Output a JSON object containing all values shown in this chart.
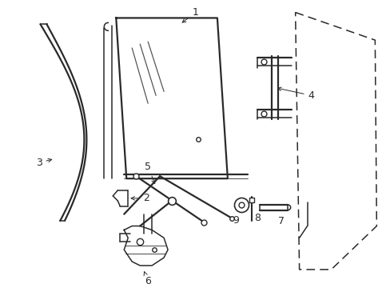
{
  "bg_color": "#ffffff",
  "line_color": "#2a2a2a",
  "figsize": [
    4.89,
    3.6
  ],
  "dpi": 100,
  "parts": {
    "label_fontsize": 9,
    "arrow_lw": 0.7
  }
}
